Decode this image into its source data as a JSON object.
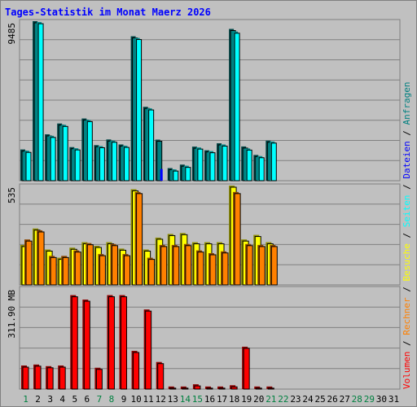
{
  "chart_data": {
    "type": "bar",
    "title": "Tages-Statistik im Monat Maerz 2026",
    "categories": [
      "1",
      "2",
      "3",
      "4",
      "5",
      "6",
      "7",
      "8",
      "9",
      "10",
      "11",
      "12",
      "13",
      "14",
      "15",
      "16",
      "17",
      "18",
      "19",
      "20",
      "21",
      "22",
      "23",
      "24",
      "25",
      "26",
      "27",
      "28",
      "29",
      "30",
      "31"
    ],
    "weekend_days": [
      "1",
      "7",
      "8",
      "14",
      "15",
      "21",
      "22",
      "28",
      "29"
    ],
    "panels": [
      {
        "name": "top",
        "ymax": 9485,
        "ymax_label": "9485",
        "series": [
          {
            "name": "Anfragen",
            "color": "#008080",
            "values": [
              1780,
              9485,
              2690,
              3340,
              1920,
              3640,
              2040,
              2380,
              2080,
              8580,
              4340,
              2370,
              660,
              870,
              1950,
              1730,
              2150,
              9020,
              1960,
              1450,
              2310,
              0,
              0,
              0,
              0,
              0,
              0,
              0,
              0,
              0,
              0
            ]
          },
          {
            "name": "Dateien",
            "color": "#0000ff",
            "values": [
              700,
              650,
              640,
              650,
              600,
              680,
              640,
              650,
              620,
              700,
              770,
              700,
              0,
              0,
              540,
              520,
              530,
              640,
              570,
              500,
              0,
              0,
              0,
              0,
              0,
              0,
              0,
              0,
              0,
              0,
              0
            ]
          },
          {
            "name": "Seiten",
            "color": "#00ffff",
            "values": [
              1700,
              9430,
              2600,
              3260,
              1850,
              3550,
              1980,
              2310,
              2000,
              8480,
              4250,
              0,
              580,
              800,
              1900,
              1680,
              2080,
              8860,
              1840,
              1380,
              2260,
              0,
              0,
              0,
              0,
              0,
              0,
              0,
              0,
              0,
              0
            ]
          }
        ]
      },
      {
        "name": "middle",
        "ymax": 535,
        "ymax_label": "535",
        "series": [
          {
            "name": "Besuche",
            "color": "#ffff00",
            "values": [
              210,
              300,
              185,
              140,
              195,
              225,
              205,
              225,
              190,
              515,
              185,
              250,
              270,
              275,
              225,
              225,
              225,
              535,
              240,
              265,
              225,
              0,
              0,
              0,
              0,
              0,
              0,
              0,
              0,
              0,
              0
            ]
          },
          {
            "name": "Rechner",
            "color": "#ff8000",
            "values": [
              240,
              290,
              150,
              150,
              180,
              220,
              160,
              215,
              160,
              500,
              140,
              210,
              210,
              215,
              180,
              165,
              175,
              500,
              215,
              210,
              210,
              0,
              0,
              0,
              0,
              0,
              0,
              0,
              0,
              0,
              0
            ]
          }
        ]
      },
      {
        "name": "bottom",
        "ymax": 311.9,
        "ymax_label": "311.90 MB",
        "series": [
          {
            "name": "Volumen",
            "color": "#ff0000",
            "values": [
              69,
              72,
              67,
              69,
              290,
              276,
              62,
              290,
              290,
              115,
              245,
              80,
              3,
              3,
              10,
              3,
              3,
              7,
              128,
              3,
              3,
              0,
              0,
              0,
              0,
              0,
              0,
              0,
              0,
              0,
              0
            ]
          }
        ]
      }
    ],
    "legend_right": [
      {
        "label": "Volumen",
        "color": "#ff0000"
      },
      {
        "label": "/",
        "color": "#000000"
      },
      {
        "label": "Rechner",
        "color": "#ff8000"
      },
      {
        "label": "/",
        "color": "#000000"
      },
      {
        "label": "Besuche",
        "color": "#ffff00"
      },
      {
        "label": "/",
        "color": "#000000"
      },
      {
        "label": "Seiten",
        "color": "#00ffff"
      },
      {
        "label": "/",
        "color": "#000000"
      },
      {
        "label": "Dateien",
        "color": "#0000ff"
      },
      {
        "label": "/",
        "color": "#000000"
      },
      {
        "label": "Anfragen",
        "color": "#008080"
      }
    ],
    "legend_placement": "right-vertical",
    "grid": true
  },
  "colors": {
    "background": "#c0c0c0",
    "title": "#0000ff",
    "weekday_label": "#000000",
    "weekend_label": "#008040"
  }
}
